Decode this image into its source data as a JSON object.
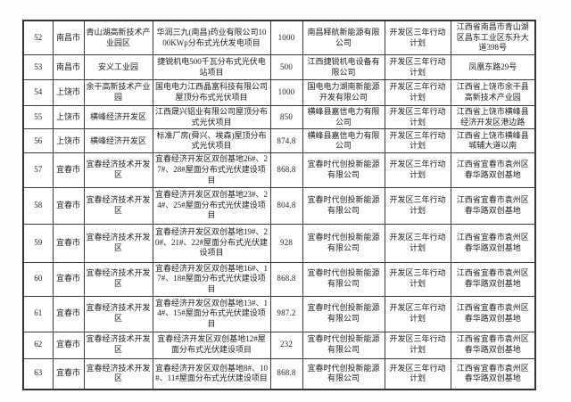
{
  "page": {
    "background_color": "#fdfdfc",
    "table_border_color": "#3b3b3b",
    "text_color": "#1c1c1c"
  },
  "table": {
    "column_keys": [
      "serial",
      "city",
      "park",
      "project",
      "capacity",
      "company",
      "plan",
      "address"
    ],
    "rows": [
      {
        "serial": "52",
        "city": "南昌市",
        "park": "青山湖高新技术产业园区",
        "project": "华润三九(南昌)药业有限公司1000KWp分布式光伏发电项目",
        "capacity": "1000",
        "company": "南昌释航新能源有限公司",
        "plan": "开发区三年行动计划",
        "address": "江西省南昌市青山湖区昌东工业区东升大道398号"
      },
      {
        "serial": "53",
        "city": "南昌市",
        "park": "安义工业园",
        "project": "捷锐机电500千瓦分布式光伏电站项目",
        "capacity": "500",
        "company": "江西捷锐机电设备有限公司",
        "plan": "开发区三年行动计划",
        "address": "凤凰东路29号"
      },
      {
        "serial": "54",
        "city": "上饶市",
        "park": "余干高新技术产业园",
        "project": "国电电力江西晶富科技有限公司屋顶分布式光伏项目",
        "capacity": "1000",
        "company": "国电电力湖南新能源开发有限公司",
        "plan": "开发区三年行动计划",
        "address": "江西省上饶市余干县高新技术产业园"
      },
      {
        "serial": "55",
        "city": "上饶市",
        "park": "横峰经济开发区",
        "project": "江西晟兴铝业有限公司屋顶分布式光伏项目",
        "capacity": "850",
        "company": "横峰县嘉信电力有限公司",
        "plan": "开发区三年行动计划",
        "address": "江西省上饶市横峰县经济开发区港边路"
      },
      {
        "serial": "56",
        "city": "上饶市",
        "park": "横峰经济开发区",
        "project": "标准厂房(舜兴、埃森)屋顶分布式光伏项目",
        "capacity": "874.8",
        "company": "横峰县嘉信电力有限公司",
        "plan": "开发区三年行动计划",
        "address": "江西省上饶市横峰县城辅大道以南"
      },
      {
        "serial": "57",
        "city": "宜春市",
        "park": "宜春经济技术开发区",
        "project": "宜春经济开发区双创基地26#、27#、28#屋面分布式光伏建设项目",
        "capacity": "868.8",
        "company": "宜春时代创投新能源有限公司",
        "plan": "开发区三年行动计划",
        "address": "江西省宜春市袁州区春华路双创基地"
      },
      {
        "serial": "58",
        "city": "宜春市",
        "park": "宜春经济技术开发区",
        "project": "宜春经济开发区双创基地23#、24#、25#屋面分布式光伏建设项目",
        "capacity": "804.8",
        "company": "宜春时代创投新能源有限公司",
        "plan": "开发区三年行动计划",
        "address": "江西省宜春市袁州区春华路双创基地"
      },
      {
        "serial": "59",
        "city": "宜春市",
        "park": "宜春经济技术开发区",
        "project": "宜春经济开发区双创基地19#、20#、21#、22#屋面分布式光伏建设项目",
        "capacity": "928",
        "company": "宜春时代创投新能源有限公司",
        "plan": "开发区三年行动计划",
        "address": "江西省宜春市袁州区春华路双创基地"
      },
      {
        "serial": "60",
        "city": "宜春市",
        "park": "宜春经济技术开发区",
        "project": "宜春经济开发区双创基地16#、17#、18#屋面分布式光伏建设项目",
        "capacity": "868.8",
        "company": "宜春时代创投新能源有限公司",
        "plan": "开发区三年行动计划",
        "address": "江西省宜春市袁州区春华路双创基地"
      },
      {
        "serial": "61",
        "city": "宜春市",
        "park": "宜春经济技术开发区",
        "project": "宜春经济开发区双创基地13#、14#、15#屋面分布式光伏建设项目",
        "capacity": "987.2",
        "company": "宜春时代创投新能源有限公司",
        "plan": "开发区三年行动计划",
        "address": "江西省宜春市袁州区春华路双创基地"
      },
      {
        "serial": "62",
        "city": "宜春市",
        "park": "宜春经济技术开发区",
        "project": "宜春经济开发区双创基地12#屋面分布式光伏建设项目",
        "capacity": "232",
        "company": "宜春时代创投新能源有限公司",
        "plan": "开发区三年行动计划",
        "address": "江西省宜春市袁州区春华路双创基地"
      },
      {
        "serial": "63",
        "city": "宜春市",
        "park": "宜春经济技术开发区",
        "project": "宜春经济开发区双创基地8#、10#、11#屋面分布式光伏建设项目",
        "capacity": "868.8",
        "company": "宜春时代创投新能源有限公司",
        "plan": "开发区三年行动计划",
        "address": "江西省宜春市袁州区春华路双创基地"
      }
    ]
  }
}
